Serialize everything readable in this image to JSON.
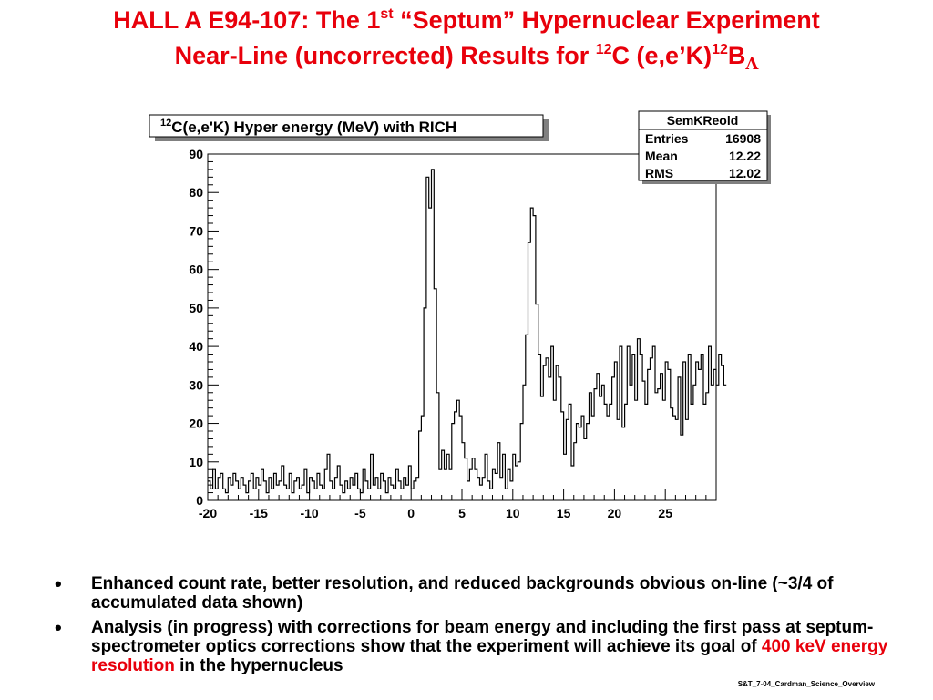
{
  "slide": {
    "title_line1": {
      "pre": "HALL A E94-107:  The 1",
      "sup": "st",
      "post": " “Septum” Hypernuclear Experiment"
    },
    "title_line2": {
      "pre": "Near-Line (uncorrected) Results for ",
      "sup1": "12",
      "mid": "C (e,e’K)",
      "sup2": "12",
      "b": "B",
      "sub": "Λ"
    },
    "bullets": [
      {
        "text": "Enhanced count rate, better resolution,  and reduced backgrounds obvious on-line (~3/4 of accumulated data shown)"
      },
      {
        "text_pre": "Analysis (in progress) with corrections for beam energy and including the first pass  at septum-spectrometer optics corrections show that the experiment will achieve its goal of ",
        "highlight": "400 keV energy resolution",
        "text_post": " in the hypernucleus"
      }
    ],
    "footer": "S&T_7-04_Cardman_Science_Overview",
    "colors": {
      "title": "#e8000b",
      "highlight": "#e8000b"
    }
  },
  "chart_data": {
    "type": "histogram",
    "title": {
      "sup": "12",
      "text": "C(e,e'K) Hyper energy (MeV) with RICH"
    },
    "stats": {
      "header": "SemKReold",
      "rows": [
        {
          "label": "Entries",
          "value": "16908"
        },
        {
          "label": "Mean",
          "value": "12.22"
        },
        {
          "label": "RMS",
          "value": "12.02"
        }
      ]
    },
    "xlim": [
      -20,
      30
    ],
    "ylim": [
      0,
      90
    ],
    "x_ticks": [
      -20,
      -15,
      -10,
      -5,
      0,
      5,
      10,
      15,
      20,
      25
    ],
    "y_ticks": [
      0,
      10,
      20,
      30,
      40,
      50,
      60,
      70,
      80,
      90
    ],
    "bin_width": 0.25,
    "bin_start": -20,
    "values": [
      5,
      3,
      8,
      3,
      6,
      7,
      3,
      2,
      6,
      4,
      7,
      5,
      3,
      6,
      4,
      2,
      5,
      7,
      3,
      6,
      4,
      8,
      5,
      2,
      6,
      3,
      7,
      4,
      5,
      9,
      4,
      3,
      7,
      2,
      5,
      6,
      3,
      4,
      8,
      2,
      6,
      5,
      3,
      7,
      4,
      3,
      8,
      12,
      5,
      3,
      6,
      9,
      4,
      2,
      5,
      3,
      6,
      4,
      7,
      3,
      2,
      8,
      5,
      3,
      12,
      4,
      6,
      3,
      7,
      5,
      2,
      6,
      4,
      3,
      8,
      5,
      3,
      6,
      4,
      9,
      3,
      5,
      6,
      18,
      22,
      50,
      84,
      76,
      86,
      55,
      28,
      8,
      13,
      8,
      12,
      8,
      20,
      23,
      26,
      22,
      15,
      11,
      5,
      8,
      11,
      8,
      6,
      4,
      6,
      12,
      5,
      3,
      8,
      7,
      15,
      6,
      12,
      3,
      8,
      5,
      12,
      9,
      10,
      20,
      30,
      43,
      67,
      76,
      74,
      51,
      38,
      27,
      35,
      37,
      32,
      40,
      26,
      35,
      32,
      23,
      12,
      21,
      25,
      9,
      15,
      20,
      19,
      22,
      16,
      20,
      28,
      22,
      29,
      33,
      27,
      30,
      25,
      22,
      25,
      32,
      36,
      21,
      40,
      19,
      25,
      40,
      30,
      38,
      26,
      42,
      38,
      31,
      25,
      34,
      37,
      40,
      28,
      29,
      33,
      26,
      36,
      34,
      24,
      22,
      21,
      32,
      17,
      36,
      21,
      38,
      25,
      30,
      36,
      34,
      38,
      25,
      28,
      40,
      30,
      34,
      30,
      38,
      35,
      30
    ]
  }
}
